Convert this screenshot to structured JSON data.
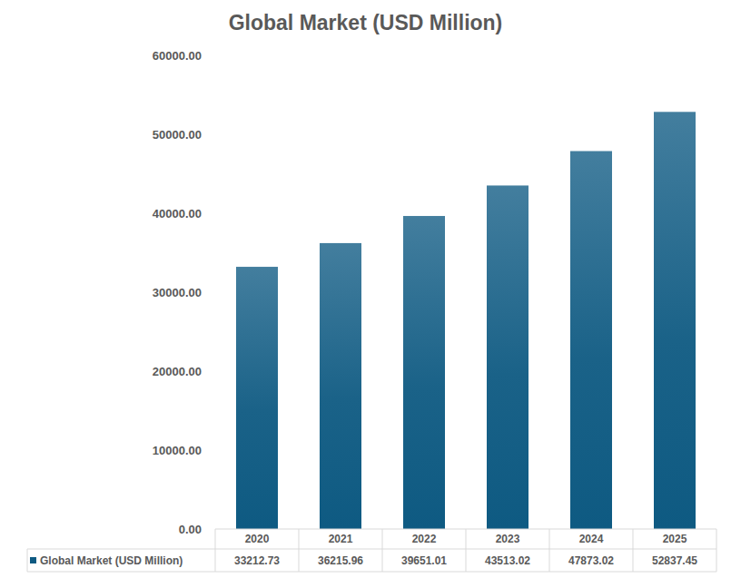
{
  "chart_data": {
    "type": "bar",
    "title": "Global Market (USD Million)",
    "categories": [
      "2020",
      "2021",
      "2022",
      "2023",
      "2024",
      "2025"
    ],
    "series": [
      {
        "name": "Global Market (USD Million)",
        "color": "#0e5a82",
        "values": [
          33212.73,
          36215.96,
          39651.01,
          43513.02,
          47873.02,
          52837.45
        ]
      }
    ],
    "ylim": [
      0,
      60000
    ],
    "yticks": [
      {
        "value": 0,
        "label": "0.00"
      },
      {
        "value": 10000,
        "label": "10000.00"
      },
      {
        "value": 20000,
        "label": "20000.00"
      },
      {
        "value": 30000,
        "label": "30000.00"
      },
      {
        "value": 40000,
        "label": "40000.00"
      },
      {
        "value": 50000,
        "label": "50000.00"
      },
      {
        "value": 60000,
        "label": "60000.00"
      }
    ],
    "grid": false
  }
}
